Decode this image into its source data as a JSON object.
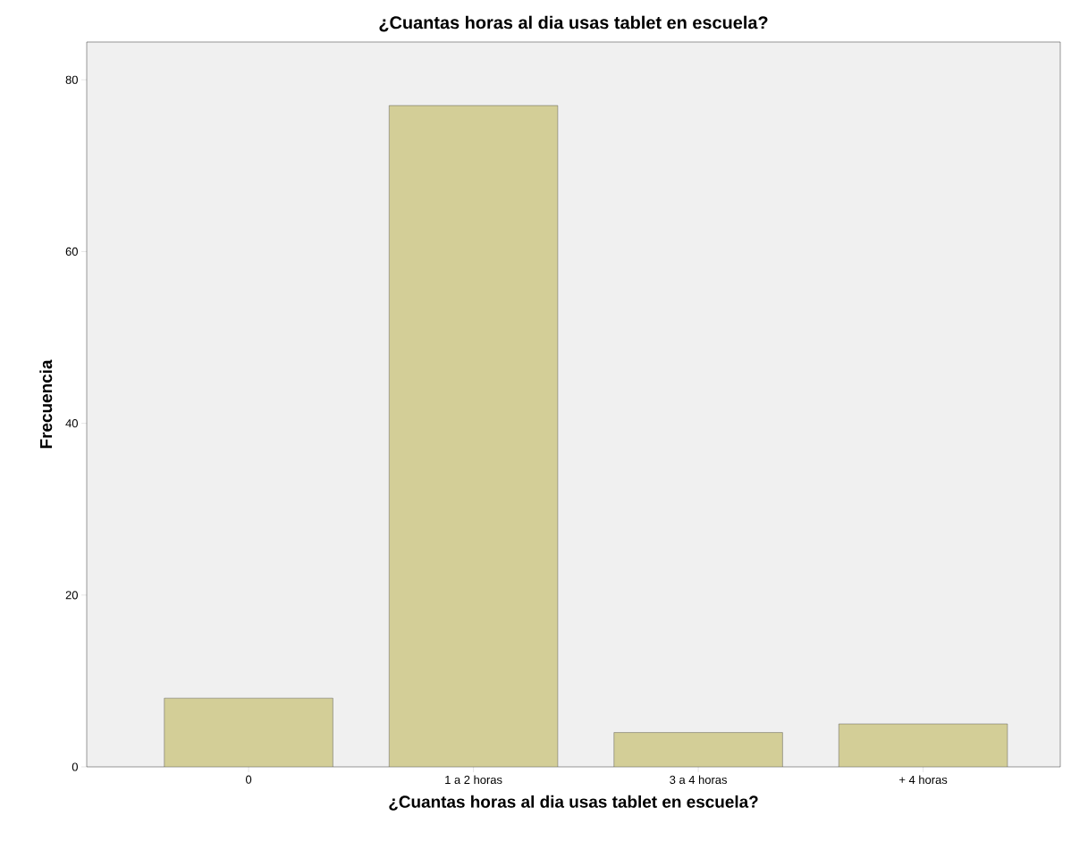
{
  "chart_data": {
    "type": "bar",
    "title": "¿Cuantas horas al dia usas tablet en escuela?",
    "xlabel": "¿Cuantas horas al dia usas tablet en escuela?",
    "ylabel": "Frecuencia",
    "categories": [
      "0",
      "1 a 2 horas",
      "3 a 4 horas",
      "+ 4 horas"
    ],
    "values": [
      8,
      77,
      4,
      5
    ],
    "color": "#d3ce97",
    "ylim": [
      0,
      84.4
    ],
    "yticks": [
      0,
      20,
      40,
      60,
      80
    ],
    "grid": false
  }
}
